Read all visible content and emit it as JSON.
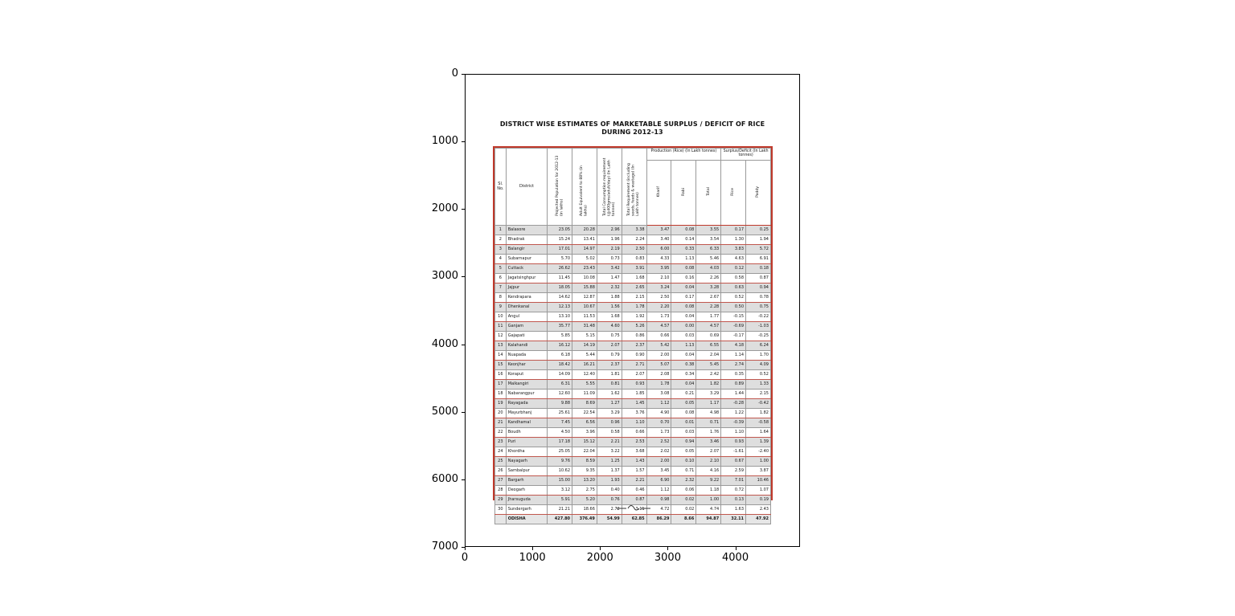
{
  "figure": {
    "x_ticks": [
      "0",
      "1000",
      "2000",
      "3000",
      "4000"
    ],
    "y_ticks": [
      "0",
      "1000",
      "2000",
      "3000",
      "4000",
      "5000",
      "6000",
      "7000"
    ]
  },
  "document": {
    "title_line1": "DISTRICT WISE ESTIMATES OF MARKETABLE SURPLUS / DEFICIT OF RICE",
    "title_line2": "DURING 2012-13",
    "table": {
      "border_color": "#c0392b",
      "headers": {
        "sl_no": "Sl. No.",
        "district": "District",
        "projected_population": "Projected Population for 2012-13 (in lakhs)",
        "adult_equivalent": "Adult Equivalent to 88% (in lakhs)",
        "total_consumption": "Total Consumption requirement (@400gms/adult/day) (In Lakh tonnes)",
        "total_requirement": "Total Requirement (including seeds, feeds & wastage) (In Lakh tonnes)",
        "production_group": "Production (Rice) (In Lakh tonnes)",
        "kharif": "Kharif",
        "rabi": "Rabi",
        "total": "Total",
        "surplus_group": "Surplus/Deficit (In Lakh tonnes)",
        "rice": "Rice",
        "paddy": "Paddy"
      },
      "rows": [
        [
          "1",
          "Balasore",
          "23.05",
          "20.28",
          "2.96",
          "3.38",
          "3.47",
          "0.08",
          "3.55",
          "0.17",
          "0.25"
        ],
        [
          "2",
          "Bhadrak",
          "15.24",
          "13.41",
          "1.96",
          "2.24",
          "3.40",
          "0.14",
          "3.54",
          "1.30",
          "1.94"
        ],
        [
          "3",
          "Balangir",
          "17.01",
          "14.97",
          "2.19",
          "2.50",
          "6.00",
          "0.33",
          "6.33",
          "3.83",
          "5.72"
        ],
        [
          "4",
          "Subarnapur",
          "5.70",
          "5.02",
          "0.73",
          "0.83",
          "4.33",
          "1.13",
          "5.46",
          "4.63",
          "6.91"
        ],
        [
          "5",
          "Cuttack",
          "26.62",
          "23.43",
          "3.42",
          "3.91",
          "3.95",
          "0.08",
          "4.03",
          "0.12",
          "0.18"
        ],
        [
          "6",
          "Jagatsinghpur",
          "11.45",
          "10.08",
          "1.47",
          "1.68",
          "2.10",
          "0.16",
          "2.26",
          "0.58",
          "0.87"
        ],
        [
          "7",
          "Jajpur",
          "18.05",
          "15.88",
          "2.32",
          "2.65",
          "3.24",
          "0.04",
          "3.28",
          "0.63",
          "0.94"
        ],
        [
          "8",
          "Kendrapara",
          "14.62",
          "12.87",
          "1.88",
          "2.15",
          "2.50",
          "0.17",
          "2.67",
          "0.52",
          "0.78"
        ],
        [
          "9",
          "Dhenkanal",
          "12.13",
          "10.67",
          "1.56",
          "1.78",
          "2.20",
          "0.08",
          "2.28",
          "0.50",
          "0.75"
        ],
        [
          "10",
          "Angul",
          "13.10",
          "11.53",
          "1.68",
          "1.92",
          "1.73",
          "0.04",
          "1.77",
          "-0.15",
          "-0.22"
        ],
        [
          "11",
          "Ganjam",
          "35.77",
          "31.48",
          "4.60",
          "5.26",
          "4.57",
          "0.00",
          "4.57",
          "-0.69",
          "-1.03"
        ],
        [
          "12",
          "Gajapati",
          "5.85",
          "5.15",
          "0.75",
          "0.86",
          "0.66",
          "0.03",
          "0.69",
          "-0.17",
          "-0.25"
        ],
        [
          "13",
          "Kalahandi",
          "16.12",
          "14.19",
          "2.07",
          "2.37",
          "5.42",
          "1.13",
          "6.55",
          "4.18",
          "6.24"
        ],
        [
          "14",
          "Nuapada",
          "6.18",
          "5.44",
          "0.79",
          "0.90",
          "2.00",
          "0.04",
          "2.04",
          "1.14",
          "1.70"
        ],
        [
          "15",
          "Keonjhar",
          "18.42",
          "16.21",
          "2.37",
          "2.71",
          "5.07",
          "0.38",
          "5.45",
          "2.74",
          "4.09"
        ],
        [
          "16",
          "Koraput",
          "14.09",
          "12.40",
          "1.81",
          "2.07",
          "2.08",
          "0.34",
          "2.42",
          "0.35",
          "0.52"
        ],
        [
          "17",
          "Malkangiri",
          "6.31",
          "5.55",
          "0.81",
          "0.93",
          "1.78",
          "0.04",
          "1.82",
          "0.89",
          "1.33"
        ],
        [
          "18",
          "Nabarangpur",
          "12.60",
          "11.09",
          "1.62",
          "1.85",
          "3.08",
          "0.21",
          "3.29",
          "1.44",
          "2.15"
        ],
        [
          "19",
          "Rayagada",
          "9.88",
          "8.69",
          "1.27",
          "1.45",
          "1.12",
          "0.05",
          "1.17",
          "-0.28",
          "-0.42"
        ],
        [
          "20",
          "Mayurbhanj",
          "25.61",
          "22.54",
          "3.29",
          "3.76",
          "4.90",
          "0.08",
          "4.98",
          "1.22",
          "1.82"
        ],
        [
          "21",
          "Kandhamal",
          "7.45",
          "6.56",
          "0.96",
          "1.10",
          "0.70",
          "0.01",
          "0.71",
          "-0.39",
          "-0.58"
        ],
        [
          "22",
          "Boudh",
          "4.50",
          "3.96",
          "0.58",
          "0.66",
          "1.73",
          "0.03",
          "1.76",
          "1.10",
          "1.64"
        ],
        [
          "23",
          "Puri",
          "17.18",
          "15.12",
          "2.21",
          "2.53",
          "2.52",
          "0.94",
          "3.46",
          "0.93",
          "1.39"
        ],
        [
          "24",
          "Khordha",
          "25.05",
          "22.04",
          "3.22",
          "3.68",
          "2.02",
          "0.05",
          "2.07",
          "-1.61",
          "-2.40"
        ],
        [
          "25",
          "Nayagarh",
          "9.76",
          "8.59",
          "1.25",
          "1.43",
          "2.00",
          "0.10",
          "2.10",
          "0.67",
          "1.00"
        ],
        [
          "26",
          "Sambalpur",
          "10.62",
          "9.35",
          "1.37",
          "1.57",
          "3.45",
          "0.71",
          "4.16",
          "2.59",
          "3.87"
        ],
        [
          "27",
          "Bargarh",
          "15.00",
          "13.20",
          "1.93",
          "2.21",
          "6.90",
          "2.32",
          "9.22",
          "7.01",
          "10.46"
        ],
        [
          "28",
          "Deogarh",
          "3.12",
          "2.75",
          "0.40",
          "0.46",
          "1.12",
          "0.06",
          "1.18",
          "0.72",
          "1.07"
        ],
        [
          "29",
          "Jharsuguda",
          "5.91",
          "5.20",
          "0.76",
          "0.87",
          "0.98",
          "0.02",
          "1.00",
          "0.13",
          "0.19"
        ],
        [
          "30",
          "Sundergarh",
          "21.21",
          "18.66",
          "2.72",
          "3.11",
          "4.72",
          "0.02",
          "4.74",
          "1.63",
          "2.43"
        ]
      ],
      "total_row": [
        "",
        "ODISHA",
        "427.80",
        "376.49",
        "54.99",
        "62.85",
        "86.29",
        "8.66",
        "94.87",
        "32.11",
        "47.92"
      ]
    }
  }
}
